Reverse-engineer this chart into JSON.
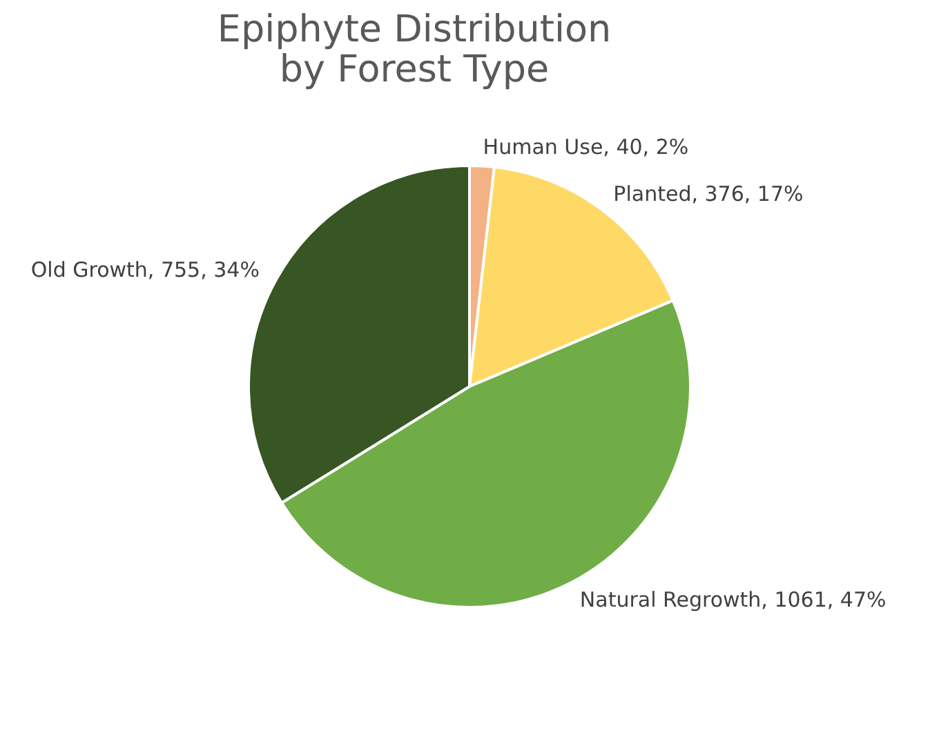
{
  "chart_data": {
    "type": "pie",
    "title": "Epiphyte Distribution\nby Forest Type",
    "categories": [
      "Human Use",
      "Planted",
      "Natural Regrowth",
      "Old Growth"
    ],
    "values": [
      40,
      376,
      1061,
      755
    ],
    "value_labels": [
      "40, 2%",
      "376, 17%",
      "1061, 47%",
      "755, 34%"
    ],
    "colors": [
      "#f4b183",
      "#ffd966",
      "#70ad47",
      "#375623"
    ],
    "legend": false
  }
}
